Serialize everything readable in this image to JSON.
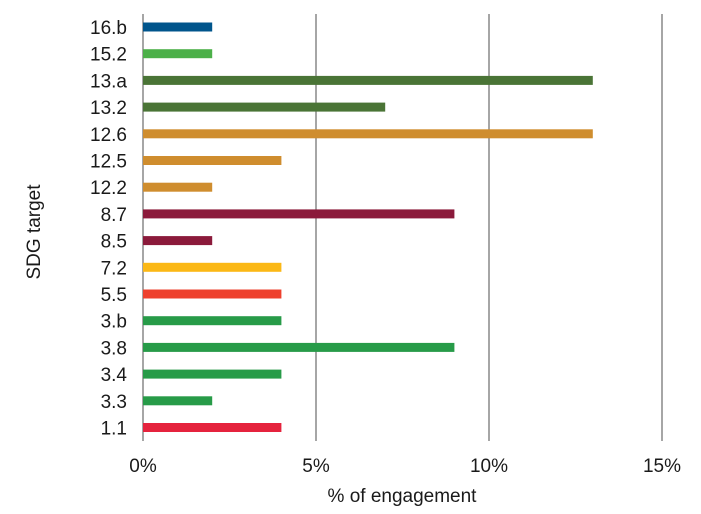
{
  "chart_data": {
    "type": "bar",
    "orientation": "horizontal",
    "categories": [
      "16.b",
      "15.2",
      "13.a",
      "13.2",
      "12.6",
      "12.5",
      "12.2",
      "8.7",
      "8.5",
      "7.2",
      "5.5",
      "3.b",
      "3.8",
      "3.4",
      "3.3",
      "1.1"
    ],
    "values": [
      2,
      2,
      13,
      7,
      13,
      4,
      2,
      9,
      2,
      4,
      4,
      4,
      9,
      4,
      2,
      4
    ],
    "colors": [
      "#00558c",
      "#4cb049",
      "#4a7436",
      "#4a7436",
      "#cf8d2e",
      "#cf8d2e",
      "#cf8d2e",
      "#8b1a3b",
      "#8b1a3b",
      "#fbb816",
      "#ee402d",
      "#279b48",
      "#279b48",
      "#279b48",
      "#279b48",
      "#e5233d"
    ],
    "xlim": [
      0,
      15
    ],
    "xticks": [
      0,
      5,
      10,
      15
    ],
    "xtick_labels": [
      "0%",
      "5%",
      "10%",
      "15%"
    ],
    "xlabel": "% of engagement",
    "ylabel": "SDG target",
    "title": "",
    "grid": "vertical",
    "legend": "none"
  }
}
